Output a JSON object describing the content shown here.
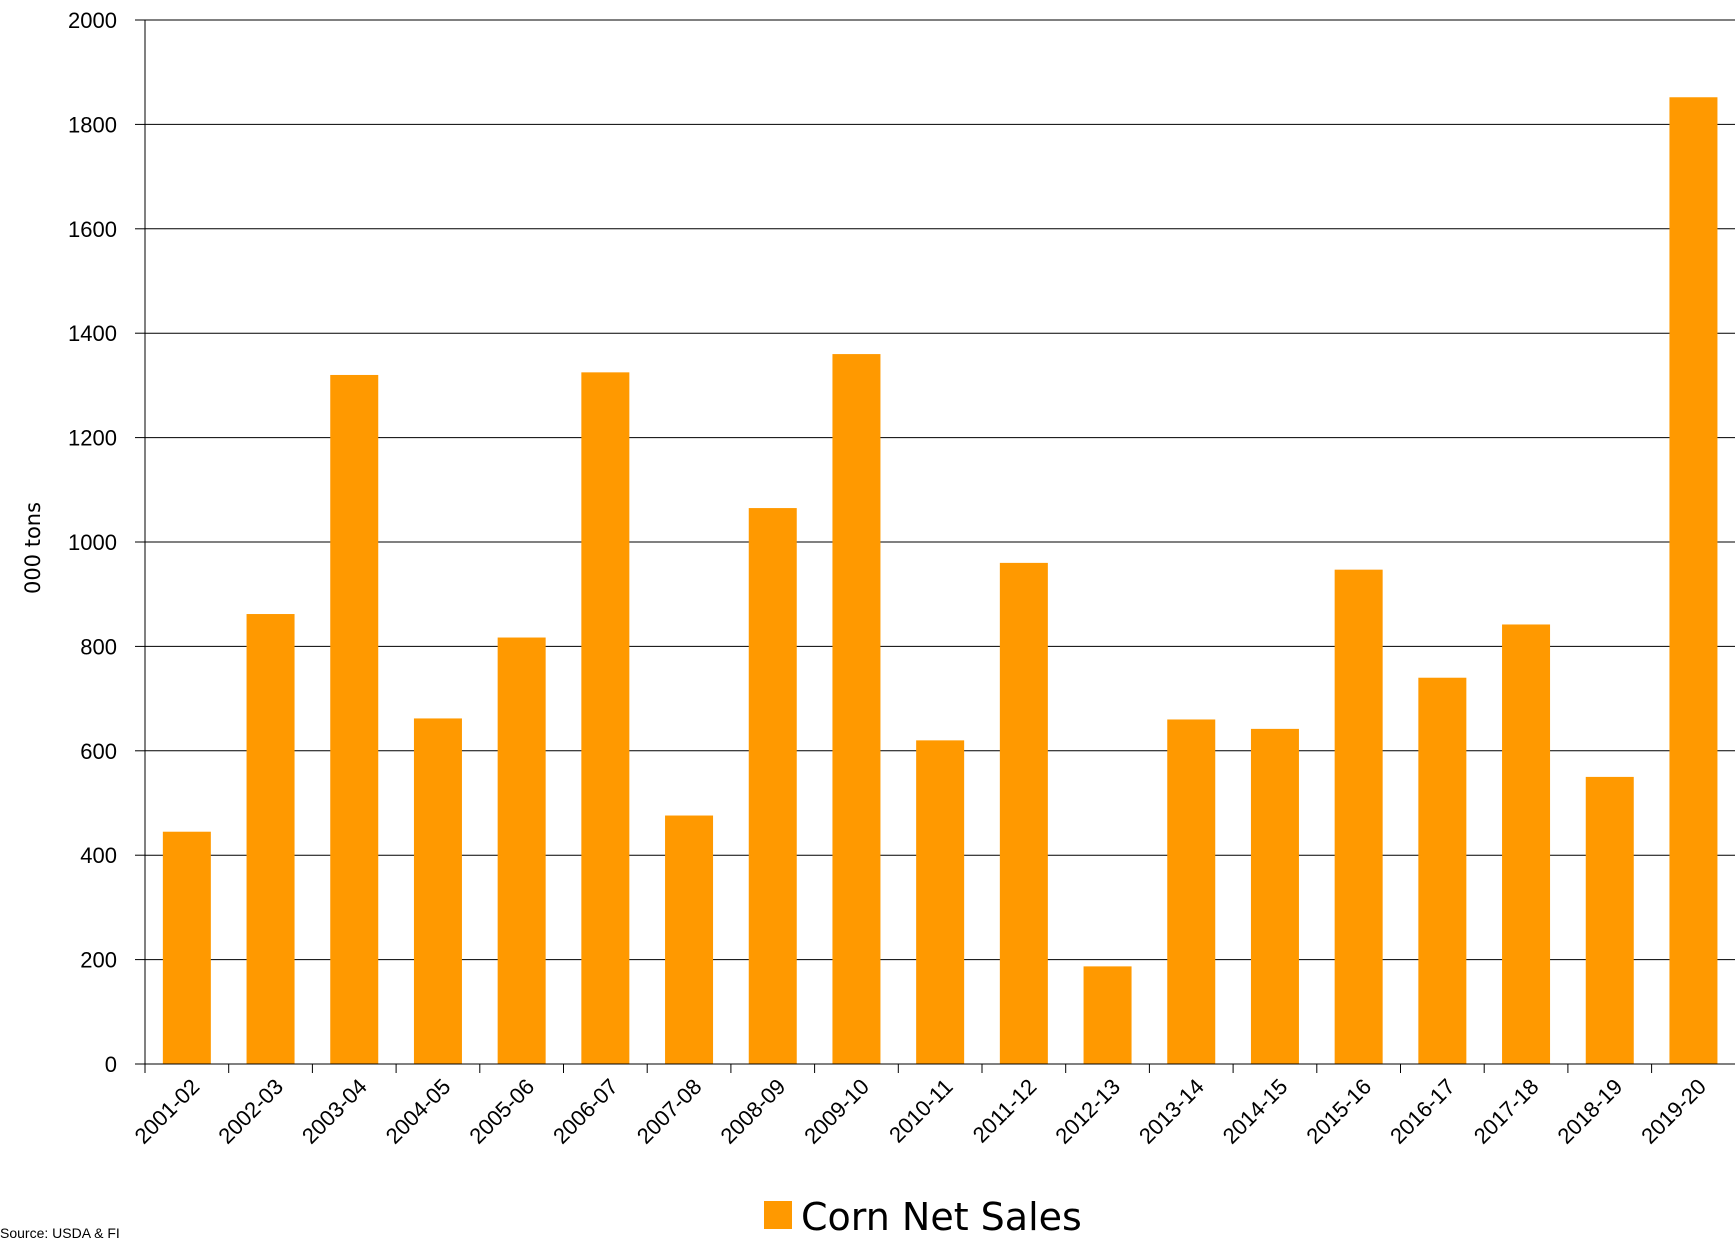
{
  "chart_data": {
    "type": "bar",
    "categories": [
      "2001-02",
      "2002-03",
      "2003-04",
      "2004-05",
      "2005-06",
      "2006-07",
      "2007-08",
      "2008-09",
      "2009-10",
      "2010-11",
      "2011-12",
      "2012-13",
      "2013-14",
      "2014-15",
      "2015-16",
      "2016-17",
      "2017-18",
      "2018-19",
      "2019-20"
    ],
    "series": [
      {
        "name": "Corn Net Sales",
        "values": [
          445,
          862,
          1320,
          662,
          817,
          1325,
          476,
          1065,
          1360,
          620,
          960,
          187,
          660,
          642,
          947,
          740,
          842,
          550,
          1852
        ],
        "color": "#FF9900"
      }
    ],
    "title": "",
    "xlabel": "",
    "ylabel": "000 tons",
    "ylim": [
      0,
      2000
    ],
    "yticks": [
      0,
      200,
      400,
      600,
      800,
      1000,
      1200,
      1400,
      1600,
      1800,
      2000
    ],
    "grid": true,
    "legend_position": "bottom-center",
    "source": "Source: USDA & FI"
  }
}
